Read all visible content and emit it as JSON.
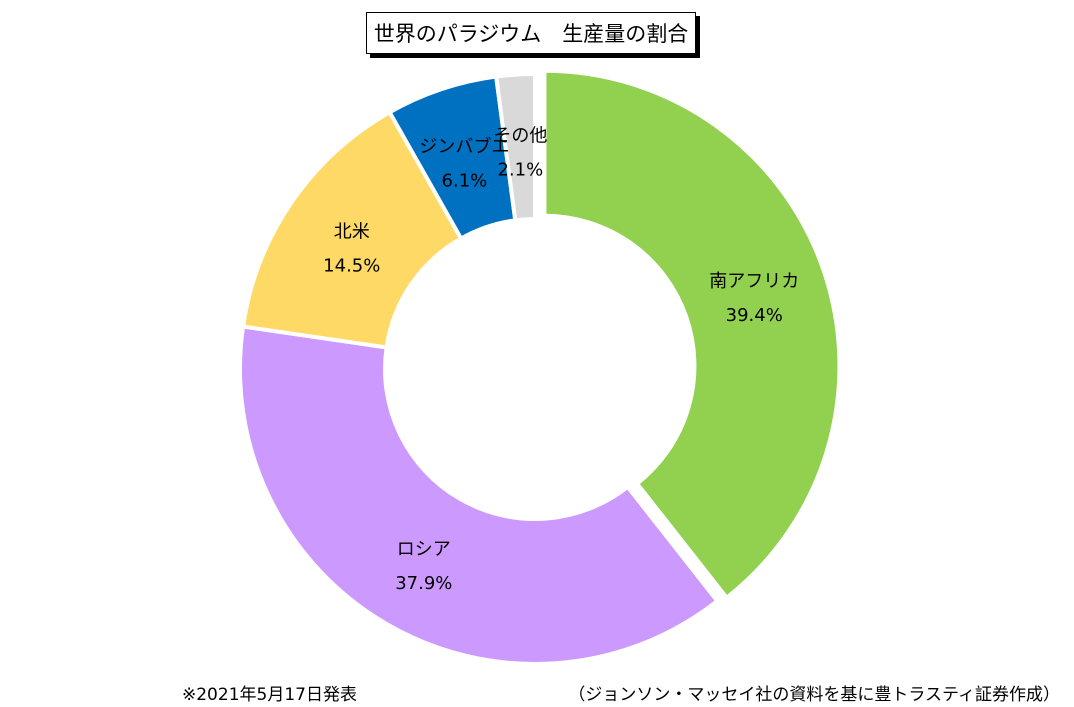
{
  "chart_data": {
    "type": "pie",
    "style": "donut",
    "title": "世界のパラジウム　生産量の割合",
    "slices": [
      {
        "label": "南アフリカ",
        "value": 39.4,
        "value_label": "39.4%",
        "color": "#92d050",
        "exploded": true
      },
      {
        "label": "ロシア",
        "value": 37.9,
        "value_label": "37.9%",
        "color": "#cc99ff",
        "exploded": false
      },
      {
        "label": "北米",
        "value": 14.5,
        "value_label": "14.5%",
        "color": "#ffd966",
        "exploded": false
      },
      {
        "label": "ジンバブエ",
        "value": 6.1,
        "value_label": "6.1%",
        "color": "#0070c0",
        "exploded": false
      },
      {
        "label": "その他",
        "value": 2.1,
        "value_label": "2.1%",
        "color": "#d9d9d9",
        "exploded": false
      }
    ],
    "start": "12 o'clock",
    "direction": "clockwise",
    "legend": "none"
  },
  "notes": {
    "date": "※2021年5月17日発表",
    "source": "（ジョンソン・マッセイ社の資料を基に豊トラスティ証券作成）"
  }
}
